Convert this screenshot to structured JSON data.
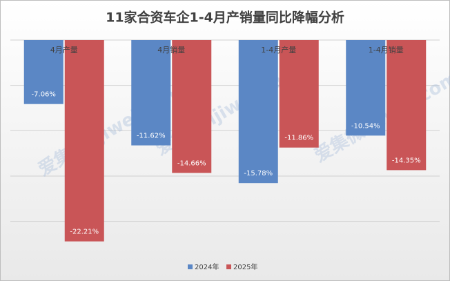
{
  "chart_data": {
    "type": "bar",
    "title": "11家合资车企1-4月产销量同比降幅分析",
    "watermark": "爱集微 ijiwei.com",
    "categories": [
      "4月产量",
      "4月销量",
      "1-4月产量",
      "1-4月销量"
    ],
    "series": [
      {
        "name": "2024年",
        "color": "#5b87c5",
        "values": [
          -7.06,
          -11.62,
          -15.78,
          -10.54
        ],
        "value_labels": [
          "-7.06%",
          "-11.62%",
          "-15.78%",
          "-10.54%"
        ]
      },
      {
        "name": "2025年",
        "color": "#c95557",
        "values": [
          -22.21,
          -14.66,
          -11.86,
          -14.35
        ],
        "value_labels": [
          "-22.21%",
          "-14.66%",
          "-11.86%",
          "-14.35%"
        ]
      }
    ],
    "ylim": [
      -23,
      0
    ],
    "yticks": [
      0,
      -5,
      -10,
      -15,
      -20
    ],
    "grid": true,
    "legend": "bottom"
  }
}
